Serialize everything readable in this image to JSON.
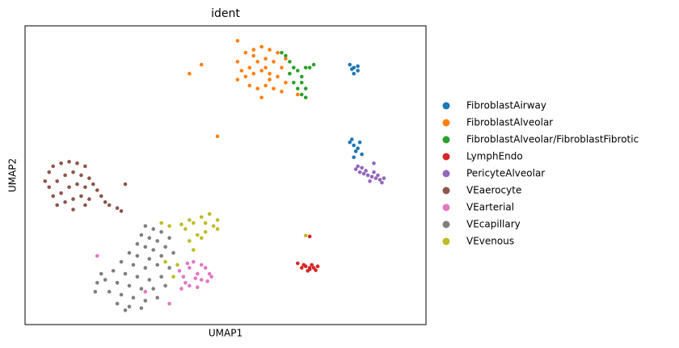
{
  "chart_data": {
    "type": "scatter",
    "title": "ident",
    "xlabel": "UMAP1",
    "ylabel": "UMAP2",
    "xlim": [
      0,
      100
    ],
    "ylim": [
      0,
      100
    ],
    "legend": "right-outside",
    "series": [
      {
        "name": "FibroblastAirway",
        "color": "#1f77b4",
        "x": [
          81,
          82,
          83,
          82,
          81.5,
          83,
          81,
          82,
          83,
          82.5,
          84,
          81.5,
          82,
          83.5
        ],
        "values": [
          87,
          86,
          85,
          84,
          85.5,
          86.5,
          61,
          60,
          59,
          58,
          57,
          62,
          56,
          61
        ]
      },
      {
        "name": "FibroblastAlveolar",
        "color": "#ff7f0e",
        "x": [
          53,
          55,
          57,
          59,
          61,
          63,
          65,
          54,
          56,
          58,
          60,
          62,
          64,
          66,
          53,
          55,
          57,
          59,
          61,
          63,
          65,
          56,
          58,
          60,
          62,
          64,
          59,
          61,
          57,
          60,
          44,
          41,
          48,
          53,
          68
        ],
        "values": [
          88,
          91,
          92,
          93,
          92,
          91,
          89,
          85,
          86,
          88,
          89,
          88,
          86,
          84,
          82,
          83,
          84,
          85,
          84,
          83,
          81,
          80,
          79,
          80,
          79,
          78,
          76,
          82,
          90,
          86,
          87,
          84,
          63,
          95,
          77
        ]
      },
      {
        "name": "FibroblastAlveolar/FibroblastFibrotic",
        "color": "#2ca02c",
        "x": [
          65,
          66,
          67,
          68,
          69,
          70,
          71,
          69,
          68,
          69,
          70,
          67,
          66,
          64,
          70,
          72
        ],
        "values": [
          90,
          88,
          86,
          85,
          83,
          86,
          86,
          81,
          79,
          77,
          76,
          81,
          84,
          91,
          79,
          87
        ]
      },
      {
        "name": "LymphEndo",
        "color": "#d62728",
        "x": [
          69,
          70,
          71,
          72,
          73,
          70.5,
          71.5,
          72.5,
          69.5,
          71,
          68,
          71
        ],
        "values": [
          19,
          19.5,
          18.5,
          19,
          19.5,
          18,
          20,
          18.2,
          20,
          19,
          20.5,
          29.5
        ]
      },
      {
        "name": "PericyteAlveolar",
        "color": "#9467bd",
        "x": [
          82.5,
          83.5,
          84.5,
          85.5,
          86.5,
          87.5,
          88.5,
          89.5,
          85,
          87,
          88,
          86,
          84,
          89,
          87,
          83
        ],
        "values": [
          52,
          51,
          50.5,
          50,
          49.5,
          49,
          48.5,
          49,
          51.5,
          51,
          50,
          48,
          52.5,
          47.5,
          54,
          53
        ]
      },
      {
        "name": "VEaerocyte",
        "color": "#8c564b",
        "x": [
          5,
          6,
          7,
          9,
          11,
          13,
          15,
          6,
          8,
          10,
          12,
          14,
          16,
          17,
          7,
          9,
          11,
          13,
          15,
          18,
          19,
          8,
          10,
          12,
          14,
          16,
          20,
          21,
          23,
          12,
          15,
          24,
          25
        ],
        "values": [
          48,
          51,
          53,
          54,
          54.5,
          54,
          53,
          46,
          48,
          50,
          51,
          50,
          49,
          47,
          43,
          44,
          46,
          47,
          46,
          45,
          43,
          40,
          41,
          42,
          43,
          42,
          41,
          40,
          39,
          38.5,
          40,
          38,
          47
        ]
      },
      {
        "name": "VEarterial",
        "color": "#e377c2",
        "x": [
          38.5,
          39.5,
          40,
          41,
          42,
          43,
          44,
          45,
          46,
          41,
          43,
          44,
          45.5,
          40.5,
          42.5,
          39,
          46.5,
          36,
          30,
          18
        ],
        "values": [
          18,
          16,
          14,
          19,
          21,
          17,
          15,
          19,
          17,
          13,
          12.5,
          20,
          14.5,
          20.5,
          15.5,
          12,
          16,
          7,
          11,
          23
        ]
      },
      {
        "name": "VEcapillary",
        "color": "#7f7f7f",
        "x": [
          30,
          32,
          34,
          29,
          31,
          33,
          36,
          28,
          30,
          32,
          35,
          26,
          28,
          31,
          34,
          37,
          24,
          27,
          30,
          33,
          36,
          22,
          25,
          28,
          31,
          34,
          20,
          23,
          26,
          29,
          32,
          35,
          21,
          24,
          27,
          30,
          33,
          23,
          26,
          29,
          18,
          19,
          25,
          17.5
        ],
        "values": [
          33,
          32,
          31,
          30,
          29,
          28,
          29,
          27,
          26,
          25,
          26,
          24,
          23,
          22,
          23,
          24,
          21,
          20,
          19,
          20,
          19,
          18,
          17,
          16,
          15,
          16,
          15,
          14,
          13,
          12,
          12,
          13,
          11,
          10,
          9,
          8,
          9,
          7,
          6,
          5.5,
          14,
          17,
          4.8,
          11
        ]
      },
      {
        "name": "VEvenous",
        "color": "#bcbd22",
        "x": [
          40,
          42,
          44,
          46,
          48,
          47,
          45,
          43,
          41,
          45,
          48,
          44,
          39,
          36,
          34,
          41,
          38,
          37,
          42,
          70,
          35
        ],
        "values": [
          32,
          34,
          36,
          37,
          35,
          33,
          31,
          30,
          35,
          34,
          32,
          29,
          33.5,
          33,
          34,
          28,
          20,
          16,
          25,
          29.8,
          21
        ]
      }
    ]
  }
}
